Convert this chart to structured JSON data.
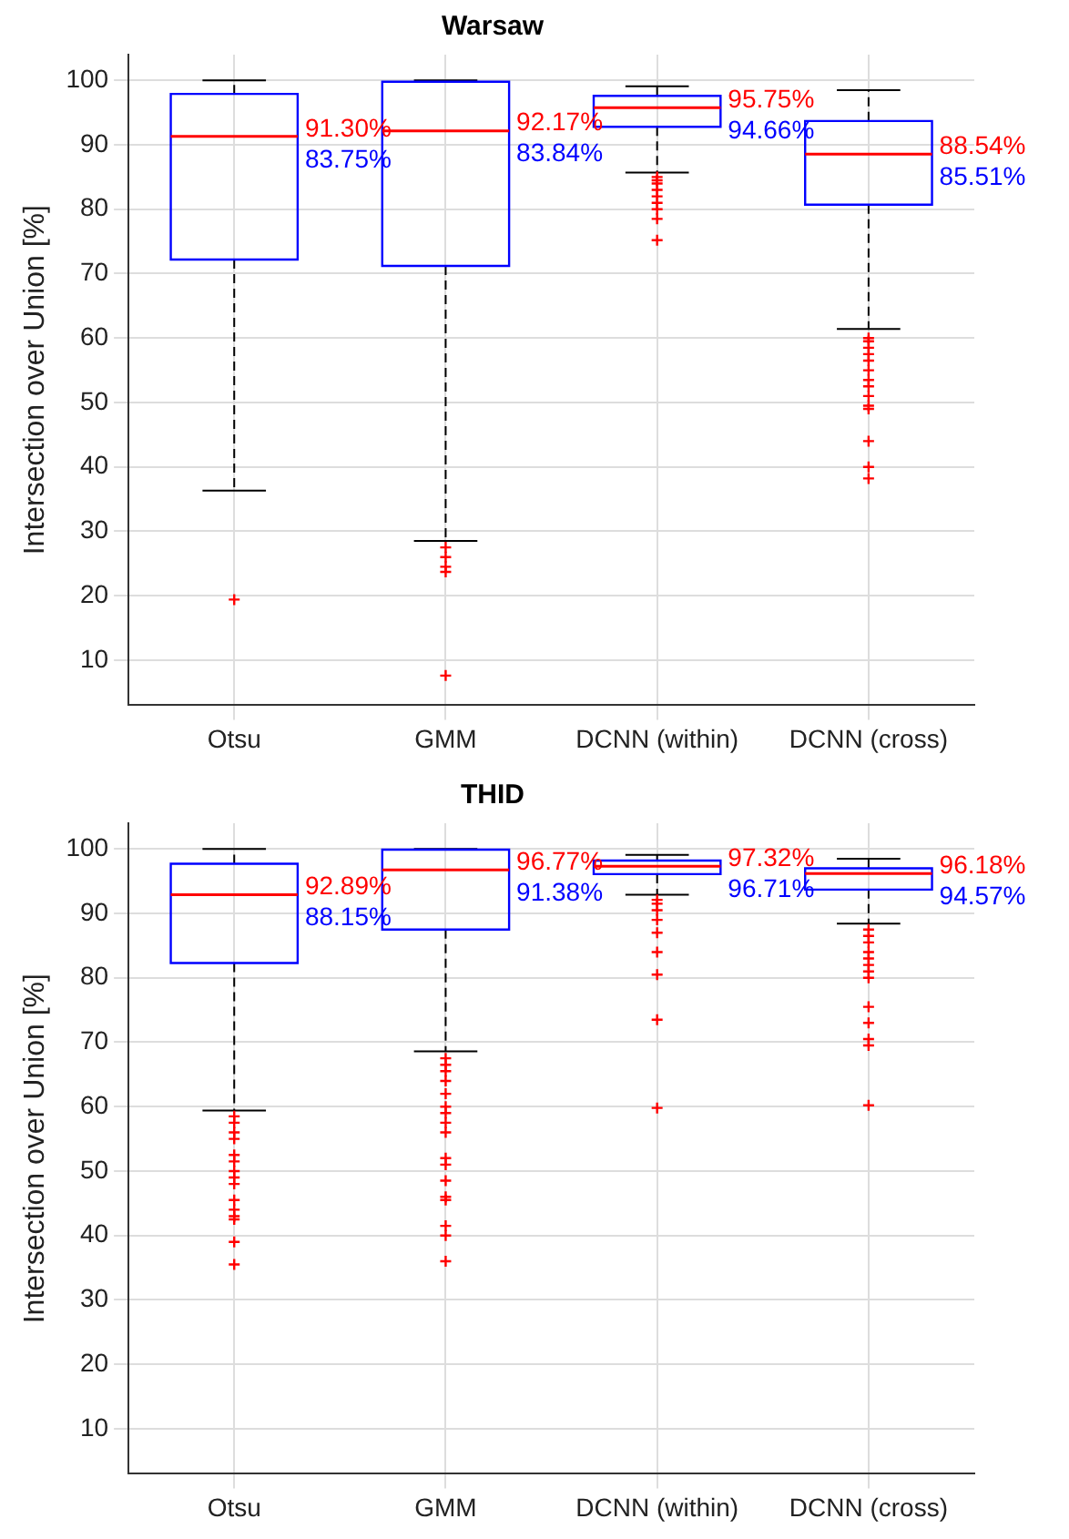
{
  "chart_data": [
    {
      "type": "box",
      "title": "Warsaw",
      "ylabel": "Intersection over Union [%]",
      "categories": [
        "Otsu",
        "GMM",
        "DCNN (within)",
        "DCNN (cross)"
      ],
      "color": "#0000ff",
      "ylim": [
        3,
        104
      ],
      "yticks": [
        10,
        20,
        30,
        40,
        50,
        60,
        70,
        80,
        90,
        100
      ],
      "grid": true,
      "boxes": [
        {
          "low": 36.3,
          "q1": 72.2,
          "median": 91.3,
          "q3": 97.9,
          "high": 100,
          "outliers": [
            19.4
          ]
        },
        {
          "low": 28.5,
          "q1": 71.2,
          "median": 92.17,
          "q3": 99.8,
          "high": 100,
          "outliers": [
            27.5,
            26,
            24.5,
            23.7,
            7.6
          ]
        },
        {
          "low": 85.7,
          "q1": 92.8,
          "median": 95.75,
          "q3": 97.6,
          "high": 99.1,
          "outliers": [
            85,
            84.5,
            84,
            83,
            82,
            81,
            80,
            78.5,
            75.2
          ]
        },
        {
          "low": 61.4,
          "q1": 80.7,
          "median": 88.54,
          "q3": 93.7,
          "high": 98.5,
          "outliers": [
            60,
            59.5,
            58.5,
            57.5,
            56.5,
            55,
            53.5,
            52.5,
            51,
            49.5,
            49,
            44,
            40,
            38.2
          ]
        }
      ],
      "annotations": [
        {
          "text": "91.30%",
          "x": "Otsu",
          "y": 91.3
        },
        {
          "text": "92.17%",
          "x": "GMM",
          "y": 92.17
        },
        {
          "text": "95.75%",
          "x": "DCNN (within)",
          "y": 95.75
        },
        {
          "text": "88.54%",
          "x": "DCNN (cross)",
          "y": 88.54
        },
        "83.75%",
        "83.84%",
        "94.66%",
        "85.51%"
      ]
    },
    {
      "type": "box",
      "title": "THID",
      "ylabel": "Intersection over Union [%]",
      "categories": [
        "Otsu",
        "GMM",
        "DCNN (within)",
        "DCNN (cross)"
      ],
      "color": "#0000ff",
      "ylim": [
        3,
        104
      ],
      "yticks": [
        10,
        20,
        30,
        40,
        50,
        60,
        70,
        80,
        90,
        100
      ],
      "grid": true,
      "boxes": [
        {
          "low": 59.4,
          "q1": 82.3,
          "median": 92.89,
          "q3": 97.7,
          "high": 100,
          "outliers": [
            58.5,
            57.5,
            56,
            55,
            52.5,
            51.5,
            50,
            49,
            48,
            45.5,
            44,
            43,
            42.5,
            39,
            35.5
          ]
        },
        {
          "low": 68.6,
          "q1": 87.5,
          "median": 96.77,
          "q3": 99.9,
          "high": 100,
          "outliers": [
            67.5,
            66.5,
            65.5,
            64,
            62,
            60,
            59,
            57.5,
            56,
            52,
            51,
            48.5,
            46,
            45.5,
            41.5,
            40,
            36
          ]
        },
        {
          "low": 92.9,
          "q1": 96.1,
          "median": 97.32,
          "q3": 98.2,
          "high": 99.1,
          "outliers": [
            92.1,
            91.5,
            90.5,
            89,
            87,
            84,
            80.5,
            73.5,
            59.8
          ]
        },
        {
          "low": 88.4,
          "q1": 93.7,
          "median": 96.18,
          "q3": 97,
          "high": 98.5,
          "outliers": [
            87.5,
            86.5,
            85.5,
            84,
            83,
            82,
            81,
            80,
            75.5,
            73,
            70.5,
            69.5,
            60.2
          ]
        }
      ],
      "annotations": [
        {
          "text": "92.89%",
          "x": "Otsu",
          "y": 92.89
        },
        {
          "text": "96.77%",
          "x": "GMM",
          "y": 96.77
        },
        {
          "text": "97.32%",
          "x": "DCNN (within)",
          "y": 97.32
        },
        {
          "text": "96.18%",
          "x": "DCNN (cross)",
          "y": 96.18
        },
        "88.15%",
        "91.38%",
        "96.71%",
        "94.57%"
      ]
    }
  ]
}
